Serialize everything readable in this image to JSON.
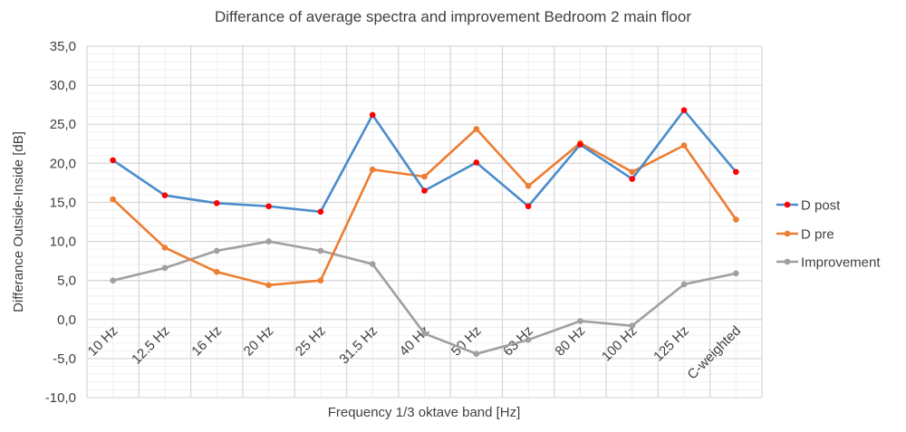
{
  "chart_data": {
    "type": "line",
    "title": "Differance of average spectra and improvement Bedroom 2 main floor",
    "xlabel": "Frequency 1/3 oktave band [Hz]",
    "ylabel": "Differance Outside-Inside [dB]",
    "ylim": [
      -10,
      35
    ],
    "y_major_step": 5,
    "y_minor_step": 1,
    "y_tick_labels": [
      "-10,0",
      "-5,0",
      "0,0",
      "5,0",
      "10,0",
      "15,0",
      "20,0",
      "25,0",
      "30,0",
      "35,0"
    ],
    "grid": true,
    "legend_position": "right",
    "categories": [
      "10 Hz",
      "12.5 Hz",
      "16 Hz",
      "20 Hz",
      "25 Hz",
      "31.5 Hz",
      "40 Hz",
      "50 Hz",
      "63 Hz",
      "80 Hz",
      "100 Hz",
      "125 Hz",
      "C-weighted"
    ],
    "series": [
      {
        "name": "D post",
        "line_color": "#4a8ccb",
        "marker_color": "#ff0000",
        "values": [
          20.4,
          15.9,
          14.9,
          14.5,
          13.8,
          26.2,
          16.5,
          20.1,
          14.5,
          22.4,
          18.0,
          26.8,
          18.9
        ]
      },
      {
        "name": "D pre",
        "line_color": "#ed7d31",
        "marker_color": "#ed7d31",
        "values": [
          15.4,
          9.2,
          6.1,
          4.4,
          5.0,
          19.2,
          18.3,
          24.4,
          17.1,
          22.6,
          18.9,
          22.3,
          12.8
        ]
      },
      {
        "name": "Improvement",
        "line_color": "#a0a0a0",
        "marker_color": "#a0a0a0",
        "values": [
          5.0,
          6.6,
          8.8,
          10.0,
          8.8,
          7.1,
          -1.8,
          -4.4,
          -2.6,
          -0.2,
          -0.8,
          4.5,
          5.9
        ]
      }
    ]
  }
}
